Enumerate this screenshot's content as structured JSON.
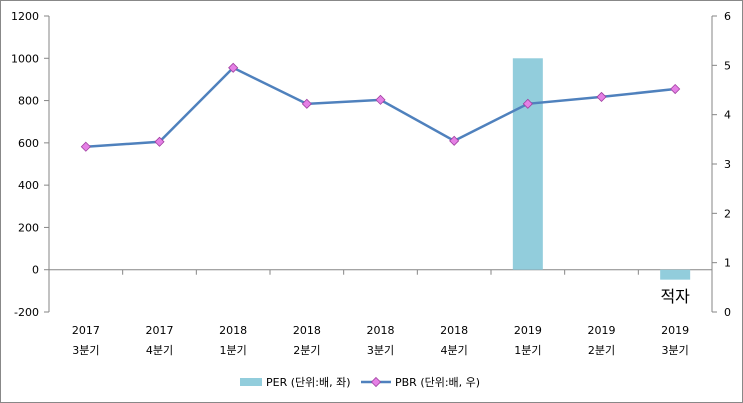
{
  "chart_data": {
    "type": "bar+line",
    "categories": [
      [
        "2017",
        "3분기"
      ],
      [
        "2017",
        "4분기"
      ],
      [
        "2018",
        "1분기"
      ],
      [
        "2018",
        "2분기"
      ],
      [
        "2018",
        "3분기"
      ],
      [
        "2018",
        "4분기"
      ],
      [
        "2019",
        "1분기"
      ],
      [
        "2019",
        "2분기"
      ],
      [
        "2019",
        "3분기"
      ]
    ],
    "series": [
      {
        "name": "PER (단위:배, 좌)",
        "type": "bar",
        "axis": "left",
        "color": "#92CDDC",
        "values": [
          null,
          null,
          null,
          null,
          null,
          null,
          1000,
          null,
          -47
        ]
      },
      {
        "name": "PBR (단위:배, 우)",
        "type": "line",
        "axis": "right",
        "color": "#4F81BD",
        "marker_color": "#E580E5",
        "values": [
          3.35,
          3.45,
          4.95,
          4.22,
          4.3,
          3.47,
          4.22,
          4.36,
          4.52
        ]
      }
    ],
    "annotations": [
      {
        "category_index": 8,
        "text": "적자"
      }
    ],
    "y_left": {
      "min": -200,
      "max": 1200,
      "step": 200
    },
    "y_right": {
      "min": 0,
      "max": 6,
      "step": 1
    },
    "legend": "bottom",
    "grid": false
  }
}
